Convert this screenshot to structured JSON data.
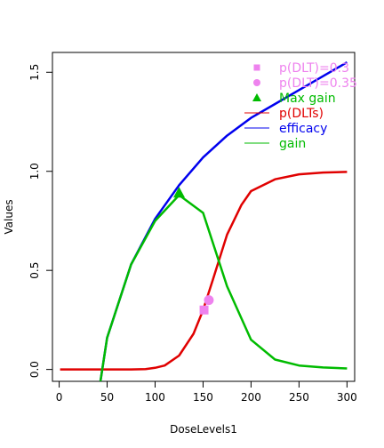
{
  "chart_data": {
    "type": "line",
    "xlabel": "DoseLevels1",
    "ylabel": "Values",
    "xlim": [
      -7,
      308
    ],
    "ylim": [
      -0.06,
      1.6
    ],
    "x_ticks": [
      "0",
      "50",
      "100",
      "150",
      "200",
      "250",
      "300"
    ],
    "y_ticks": [
      "0.0",
      "0.5",
      "1.0",
      "1.5"
    ],
    "grid": false,
    "legend_position": "top-right",
    "series": [
      {
        "name": "p(DLTs)",
        "kind": "line",
        "color": "#e00000",
        "x": [
          1,
          25,
          50,
          75,
          90,
          100,
          110,
          125,
          140,
          150,
          160,
          175,
          190,
          200,
          225,
          250,
          275,
          300
        ],
        "y": [
          0.0,
          0.0,
          0.0,
          0.0003,
          0.002,
          0.008,
          0.02,
          0.07,
          0.18,
          0.3,
          0.45,
          0.68,
          0.83,
          0.9,
          0.96,
          0.985,
          0.994,
          0.997
        ]
      },
      {
        "name": "efficacy",
        "kind": "line",
        "color": "#0000ee",
        "x": [
          43,
          50,
          75,
          100,
          125,
          150,
          175,
          200,
          225,
          250,
          275,
          300
        ],
        "y": [
          -0.06,
          0.16,
          0.53,
          0.76,
          0.93,
          1.07,
          1.18,
          1.27,
          1.34,
          1.41,
          1.48,
          1.55
        ]
      },
      {
        "name": "gain",
        "kind": "line",
        "color": "#00bb00",
        "x": [
          43,
          50,
          75,
          100,
          125,
          150,
          175,
          200,
          225,
          250,
          275,
          300
        ],
        "y": [
          -0.06,
          0.16,
          0.53,
          0.75,
          0.88,
          0.79,
          0.42,
          0.15,
          0.05,
          0.02,
          0.01,
          0.005
        ]
      },
      {
        "name": "p(DLT)=0.3",
        "kind": "point",
        "shape": "square",
        "color": "#ee82ee",
        "x": [
          151
        ],
        "y": [
          0.3
        ]
      },
      {
        "name": "p(DLT)=0.35",
        "kind": "point",
        "shape": "circle",
        "color": "#ee82ee",
        "x": [
          156
        ],
        "y": [
          0.35
        ]
      },
      {
        "name": "Max gain",
        "kind": "point",
        "shape": "triangle",
        "color": "#00bb00",
        "x": [
          125
        ],
        "y": [
          0.89
        ]
      }
    ],
    "legend": [
      {
        "label": "p(DLT)=0.3",
        "symbol": "square",
        "color": "#ee82ee"
      },
      {
        "label": "p(DLT)=0.35",
        "symbol": "circle",
        "color": "#ee82ee"
      },
      {
        "label": "Max gain",
        "symbol": "triangle",
        "color": "#00bb00"
      },
      {
        "label": "p(DLTs)",
        "symbol": "line",
        "color": "#e00000"
      },
      {
        "label": "efficacy",
        "symbol": "line",
        "color": "#0000ee"
      },
      {
        "label": "gain",
        "symbol": "line",
        "color": "#00bb00"
      }
    ]
  }
}
